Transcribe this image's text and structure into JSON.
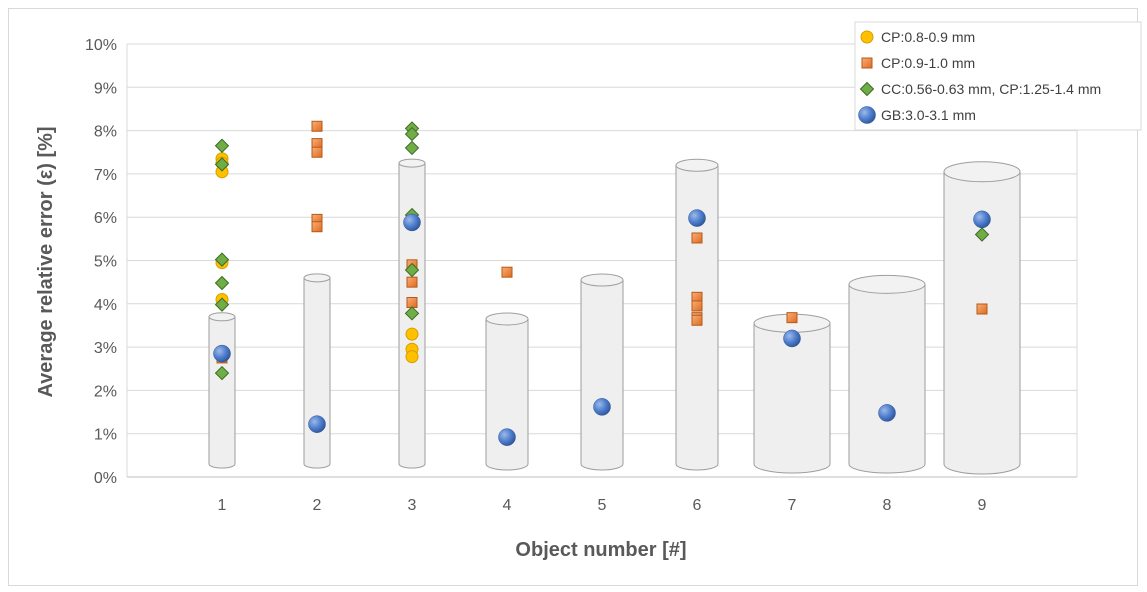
{
  "chart_data": {
    "type": "scatter",
    "title": "",
    "xlabel": "Object number [#]",
    "ylabel": "Average relative error (ε) [%]",
    "ylim": [
      0,
      10
    ],
    "xlim": [
      0,
      10
    ],
    "grid": true,
    "legend_position": "top-right",
    "x_ticks": [
      "1",
      "2",
      "3",
      "4",
      "5",
      "6",
      "7",
      "8",
      "9"
    ],
    "y_ticks": [
      "0%",
      "1%",
      "2%",
      "3%",
      "4%",
      "5%",
      "6%",
      "7%",
      "8%",
      "9%",
      "10%"
    ],
    "background_cylinders": [
      {
        "x": 1,
        "low": 0.3,
        "high": 3.7,
        "width": "narrow"
      },
      {
        "x": 2,
        "low": 0.3,
        "high": 4.6,
        "width": "narrow"
      },
      {
        "x": 3,
        "low": 0.3,
        "high": 7.25,
        "width": "narrow"
      },
      {
        "x": 4,
        "low": 0.3,
        "high": 3.65,
        "width": "medium"
      },
      {
        "x": 5,
        "low": 0.3,
        "high": 4.55,
        "width": "medium"
      },
      {
        "x": 6,
        "low": 0.3,
        "high": 7.2,
        "width": "medium"
      },
      {
        "x": 7,
        "low": 0.3,
        "high": 3.55,
        "width": "wide"
      },
      {
        "x": 8,
        "low": 0.3,
        "high": 4.45,
        "width": "wide"
      },
      {
        "x": 9,
        "low": 0.3,
        "high": 7.05,
        "width": "xwide"
      }
    ],
    "series": [
      {
        "name": "CP:0.8-0.9 mm",
        "marker": "circle",
        "color": "#ffc000",
        "stroke": "#d4a000",
        "points": [
          {
            "x": 1,
            "y": 7.35
          },
          {
            "x": 1,
            "y": 7.25
          },
          {
            "x": 1,
            "y": 7.05
          },
          {
            "x": 1,
            "y": 4.95
          },
          {
            "x": 1,
            "y": 4.1
          },
          {
            "x": 3,
            "y": 3.3
          },
          {
            "x": 3,
            "y": 2.95
          },
          {
            "x": 3,
            "y": 2.78
          }
        ]
      },
      {
        "name": "CP:0.9-1.0 mm",
        "marker": "square",
        "color": "#ed7d31",
        "stroke": "#b55a1a",
        "points": [
          {
            "x": 1,
            "y": 2.75
          },
          {
            "x": 2,
            "y": 8.1
          },
          {
            "x": 2,
            "y": 7.7
          },
          {
            "x": 2,
            "y": 7.5
          },
          {
            "x": 2,
            "y": 5.95
          },
          {
            "x": 2,
            "y": 5.78
          },
          {
            "x": 3,
            "y": 4.9
          },
          {
            "x": 3,
            "y": 4.5
          },
          {
            "x": 3,
            "y": 4.03
          },
          {
            "x": 4,
            "y": 4.73
          },
          {
            "x": 6,
            "y": 5.52
          },
          {
            "x": 6,
            "y": 4.15
          },
          {
            "x": 6,
            "y": 3.95
          },
          {
            "x": 6,
            "y": 3.68
          },
          {
            "x": 6,
            "y": 3.62
          },
          {
            "x": 7,
            "y": 3.68
          },
          {
            "x": 9,
            "y": 3.88
          }
        ]
      },
      {
        "name": "CC:0.56-0.63 mm, CP:1.25-1.4 mm",
        "marker": "diamond",
        "color": "#70ad47",
        "stroke": "#3d6b24",
        "points": [
          {
            "x": 1,
            "y": 7.65
          },
          {
            "x": 1,
            "y": 7.22
          },
          {
            "x": 1,
            "y": 5.02
          },
          {
            "x": 1,
            "y": 4.48
          },
          {
            "x": 1,
            "y": 3.98
          },
          {
            "x": 1,
            "y": 2.4
          },
          {
            "x": 3,
            "y": 8.05
          },
          {
            "x": 3,
            "y": 7.92
          },
          {
            "x": 3,
            "y": 7.6
          },
          {
            "x": 3,
            "y": 6.05
          },
          {
            "x": 3,
            "y": 4.78
          },
          {
            "x": 3,
            "y": 3.78
          },
          {
            "x": 9,
            "y": 5.6
          }
        ]
      },
      {
        "name": "GB:3.0-3.1 mm",
        "marker": "sphere",
        "color": "#4472c4",
        "stroke": "#2f5597",
        "points": [
          {
            "x": 1,
            "y": 2.85
          },
          {
            "x": 2,
            "y": 1.22
          },
          {
            "x": 3,
            "y": 5.88
          },
          {
            "x": 4,
            "y": 0.92
          },
          {
            "x": 5,
            "y": 1.62
          },
          {
            "x": 6,
            "y": 5.98
          },
          {
            "x": 7,
            "y": 3.2
          },
          {
            "x": 8,
            "y": 1.48
          },
          {
            "x": 9,
            "y": 5.95
          }
        ]
      }
    ]
  }
}
